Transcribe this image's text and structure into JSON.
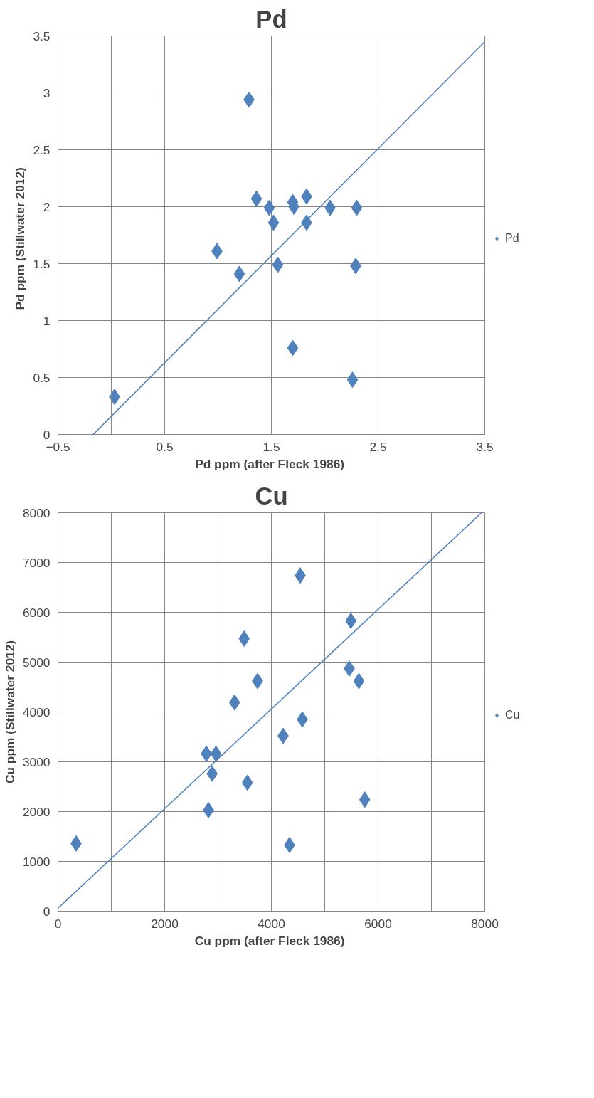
{
  "chart_data": [
    {
      "type": "scatter",
      "title": "Pd",
      "xlabel": "Pd ppm  (after Fleck 1986)",
      "ylabel": "Pd ppm   (Stillwater 2012)",
      "xlim": [
        -0.5,
        3.5
      ],
      "xticks": [
        -0.5,
        0.5,
        1.5,
        2.5,
        3.5
      ],
      "ylim": [
        0,
        3.5
      ],
      "yticks": [
        0,
        0.5,
        1,
        1.5,
        2,
        2.5,
        3,
        3.5
      ],
      "grid": true,
      "legend": "right",
      "ref_lines": [
        {
          "axis": "x",
          "value": 0,
          "color": "#868686"
        }
      ],
      "series": [
        {
          "name": "Pd",
          "color": "#4f81bd",
          "marker": "diamond",
          "x": [
            0.03,
            0.99,
            1.2,
            1.29,
            1.36,
            1.48,
            1.52,
            1.56,
            1.7,
            1.71,
            1.7,
            1.83,
            1.83,
            2.05,
            2.3,
            2.29,
            2.26
          ],
          "values": [
            0.33,
            1.61,
            1.41,
            2.94,
            2.07,
            1.99,
            1.86,
            1.49,
            2.04,
            2.0,
            0.76,
            2.09,
            1.86,
            1.99,
            1.99,
            1.48,
            0.48
          ]
        },
        {
          "type": "line",
          "color": "#4a7ebb",
          "x": [
            -0.17,
            3.5
          ],
          "values": [
            0,
            3.45
          ]
        }
      ]
    },
    {
      "type": "scatter",
      "title": "Cu",
      "xlabel": "Cu ppm (after Fleck  1986)",
      "ylabel": "Cu ppm (Stillwater 2012)",
      "xlim": [
        0,
        8000
      ],
      "xticks": [
        0,
        {
          "value": 1000,
          "label": null
        },
        2000,
        {
          "value": 3000,
          "label": null
        },
        4000,
        {
          "value": 5000,
          "label": null
        },
        6000,
        {
          "value": 7000,
          "label": null
        },
        8000
      ],
      "ylim": [
        0,
        8000
      ],
      "yticks": [
        0,
        1000,
        2000,
        3000,
        4000,
        5000,
        6000,
        7000,
        8000
      ],
      "grid": true,
      "legend": "right",
      "series": [
        {
          "name": "Cu",
          "color": "#4f81bd",
          "marker": "diamond",
          "x": [
            340,
            2780,
            2960,
            2890,
            2820,
            3310,
            3490,
            3550,
            3740,
            4220,
            4340,
            4540,
            4580,
            5490,
            5460,
            5640,
            5750
          ],
          "values": [
            1360,
            3160,
            3160,
            2760,
            2030,
            4190,
            5470,
            2580,
            4620,
            3520,
            1330,
            6740,
            3850,
            5830,
            4870,
            4620,
            2240
          ]
        },
        {
          "type": "line",
          "color": "#4a7ebb",
          "x": [
            0,
            7940
          ],
          "values": [
            60,
            8000
          ]
        }
      ]
    }
  ]
}
